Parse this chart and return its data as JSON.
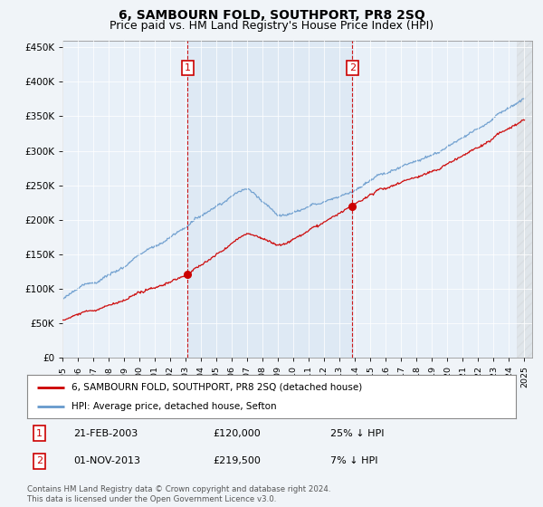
{
  "title": "6, SAMBOURN FOLD, SOUTHPORT, PR8 2SQ",
  "subtitle": "Price paid vs. HM Land Registry's House Price Index (HPI)",
  "background_color": "#f0f4f8",
  "plot_bg_color": "#e8f0f8",
  "shade_color": "#cddcef",
  "ylim": [
    0,
    460000
  ],
  "yticks": [
    0,
    50000,
    100000,
    150000,
    200000,
    250000,
    300000,
    350000,
    400000,
    450000
  ],
  "ytick_labels": [
    "£0",
    "£50K",
    "£100K",
    "£150K",
    "£200K",
    "£250K",
    "£300K",
    "£350K",
    "£400K",
    "£450K"
  ],
  "x_start_year": 1995,
  "x_end_year": 2025,
  "red_line_color": "#cc0000",
  "blue_line_color": "#6699cc",
  "marker1_year": 2003.125,
  "marker1_price": 120000,
  "marker2_year": 2013.833,
  "marker2_price": 219500,
  "vline_color": "#cc0000",
  "shade_alpha": 0.35,
  "legend_label_red": "6, SAMBOURN FOLD, SOUTHPORT, PR8 2SQ (detached house)",
  "legend_label_blue": "HPI: Average price, detached house, Sefton",
  "footer": "Contains HM Land Registry data © Crown copyright and database right 2024.\nThis data is licensed under the Open Government Licence v3.0.",
  "title_fontsize": 10,
  "subtitle_fontsize": 9
}
